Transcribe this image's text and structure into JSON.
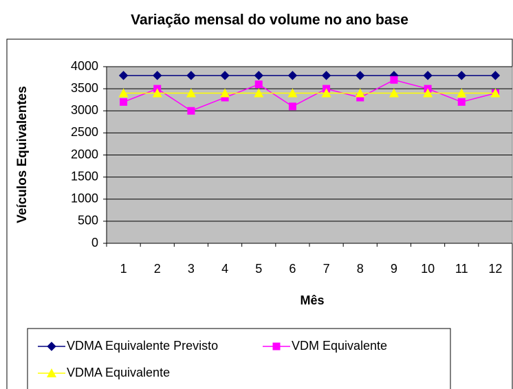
{
  "chart_data": {
    "type": "line",
    "title": "Variação mensal do volume no ano base",
    "x_label": "Mês",
    "y_label": "Veículos Equivalentes",
    "categories": [
      "1",
      "2",
      "3",
      "4",
      "5",
      "6",
      "7",
      "8",
      "9",
      "10",
      "11",
      "12"
    ],
    "series": [
      {
        "name": "VDMA Equivalente Previsto",
        "color": "#000080",
        "marker": "diamond",
        "values": [
          3800,
          3800,
          3800,
          3800,
          3800,
          3800,
          3800,
          3800,
          3800,
          3800,
          3800,
          3800
        ]
      },
      {
        "name": "VDM Equivalente",
        "color": "#ff00ff",
        "marker": "square",
        "values": [
          3200,
          3500,
          3000,
          3300,
          3600,
          3100,
          3500,
          3300,
          3700,
          3500,
          3200,
          3400
        ]
      },
      {
        "name": "VDMA Equivalente",
        "color": "#ffff00",
        "marker": "triangle",
        "values": [
          3400,
          3400,
          3400,
          3400,
          3400,
          3400,
          3400,
          3400,
          3400,
          3400,
          3400,
          3400
        ]
      }
    ],
    "ylim": [
      0,
      4000
    ],
    "yticks": [
      0,
      500,
      1000,
      1500,
      2000,
      2500,
      3000,
      3500,
      4000
    ],
    "grid": true,
    "plot_background": "#c0c0c0",
    "legend": "bottom"
  }
}
